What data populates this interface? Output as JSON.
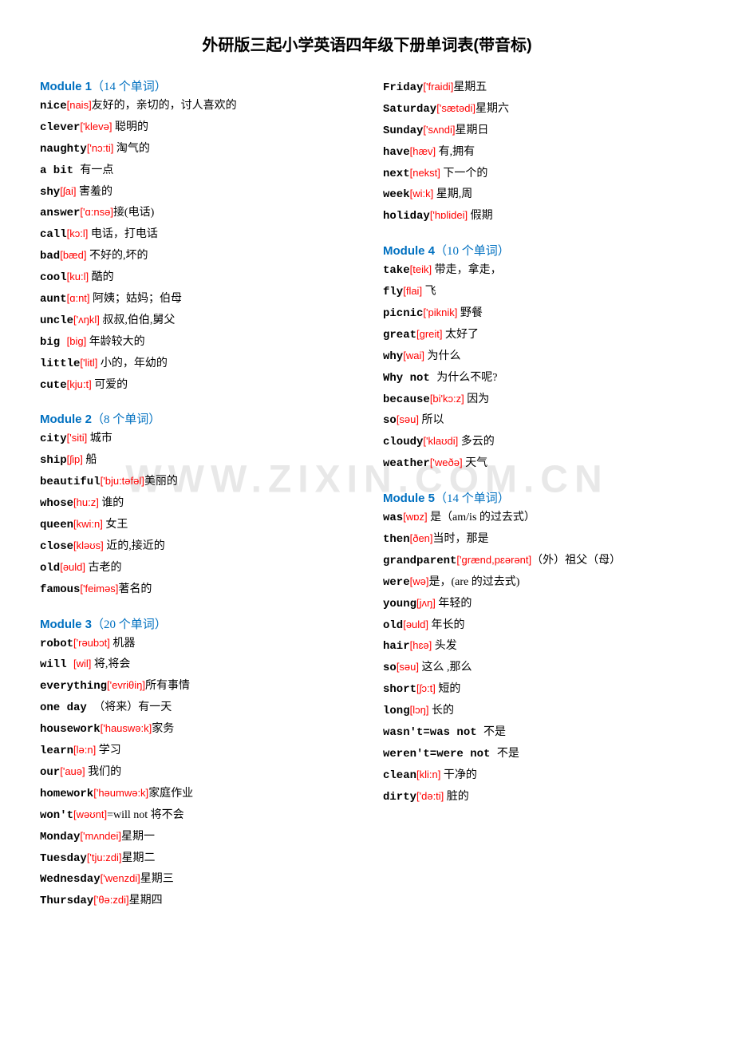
{
  "title": "外研版三起小学英语四年级下册单词表(带音标)",
  "watermark": "WWW.ZIXIN.COM.CN",
  "leftColumn": [
    {
      "header": "Module 1",
      "count": "（14 个单词）",
      "entries": [
        {
          "word": "nice",
          "ipa": "[nais]",
          "def": "友好的，亲切的，讨人喜欢的"
        },
        {
          "word": "clever",
          "ipa": "['klevə]",
          "def": " 聪明的"
        },
        {
          "word": "naughty",
          "ipa": "['nɔ:ti]",
          "def": " 淘气的"
        },
        {
          "word": "a bit ",
          "ipa": "",
          "def": "有一点"
        },
        {
          "word": "shy",
          "ipa": "[ʃai]",
          "def": " 害羞的"
        },
        {
          "word": "answer",
          "ipa": "['ɑ:nsə]",
          "def": "接(电话)"
        },
        {
          "word": "call",
          "ipa": "[kɔ:l]",
          "def": " 电话，打电话"
        },
        {
          "word": "bad",
          "ipa": "[bæd]",
          "def": " 不好的,坏的"
        },
        {
          "word": "cool",
          "ipa": "[ku:l]",
          "def": " 酷的"
        },
        {
          "word": "aunt",
          "ipa": "[ɑ:nt]",
          "def": " 阿姨；姑妈；伯母"
        },
        {
          "word": "uncle",
          "ipa": "['ʌŋkl]",
          "def": " 叔叔,伯伯,舅父"
        },
        {
          "word": "big ",
          "ipa": "[big]",
          "def": " 年龄较大的"
        },
        {
          "word": "little",
          "ipa": "['litl]",
          "def": " 小的，年幼的"
        },
        {
          "word": "cute",
          "ipa": "[kju:t]",
          "def": " 可爱的"
        }
      ]
    },
    {
      "header": "Module 2",
      "count": "（8 个单词）",
      "entries": [
        {
          "word": "city",
          "ipa": "['siti]",
          "def": " 城市"
        },
        {
          "word": "ship",
          "ipa": "[ʃip]",
          "def": " 船"
        },
        {
          "word": "beautiful",
          "ipa": "['bju:təfəl]",
          "def": "美丽的"
        },
        {
          "word": "whose",
          "ipa": "[hu:z]",
          "def": " 谁的"
        },
        {
          "word": "queen",
          "ipa": "[kwi:n]",
          "def": " 女王"
        },
        {
          "word": "close",
          "ipa": "[kləʊs]",
          "def": " 近的,接近的"
        },
        {
          "word": "old",
          "ipa": "[əuld]",
          "def": " 古老的"
        },
        {
          "word": "famous",
          "ipa": "['feiməs]",
          "def": "著名的"
        }
      ]
    },
    {
      "header": "Module 3",
      "count": "（20 个单词）",
      "entries": [
        {
          "word": "robot",
          "ipa": "['rəubɔt]",
          "def": " 机器"
        },
        {
          "word": "will ",
          "ipa": "[wil]",
          "def": " 将,将会"
        },
        {
          "word": "everything",
          "ipa": "['evriθiŋ]",
          "def": "所有事情"
        },
        {
          "word": "one day ",
          "ipa": "",
          "def": "（将来）有一天"
        },
        {
          "word": "housework",
          "ipa": "['hauswə:k]",
          "def": "家务"
        },
        {
          "word": "learn",
          "ipa": "[lə:n]",
          "def": " 学习"
        },
        {
          "word": "our",
          "ipa": "['auə]",
          "def": " 我们的"
        },
        {
          "word": "homework",
          "ipa": "['həumwə:k]",
          "def": "家庭作业"
        },
        {
          "word": "won't",
          "ipa": "[wəʊnt]",
          "def": "=will not 将不会"
        },
        {
          "word": "Monday",
          "ipa": "['mʌndei]",
          "def": "星期一"
        },
        {
          "word": "Tuesday",
          "ipa": "['tju:zdi]",
          "def": "星期二"
        },
        {
          "word": "Wednesday",
          "ipa": "['wenzdi]",
          "def": "星期三"
        },
        {
          "word": "Thursday",
          "ipa": "['θə:zdi]",
          "def": "星期四"
        }
      ]
    }
  ],
  "rightColumn": [
    {
      "header": "",
      "count": "",
      "entries": [
        {
          "word": "Friday",
          "ipa": "['fraidi]",
          "def": "星期五"
        },
        {
          "word": "Saturday",
          "ipa": "['sætədi]",
          "def": "星期六"
        },
        {
          "word": "Sunday",
          "ipa": "['sʌndi]",
          "def": "星期日"
        },
        {
          "word": "have",
          "ipa": "[hæv]",
          "def": " 有,拥有"
        },
        {
          "word": "next",
          "ipa": "[nekst]",
          "def": " 下一个的"
        },
        {
          "word": "week",
          "ipa": "[wi:k]",
          "def": " 星期,周"
        },
        {
          "word": "holiday",
          "ipa": "['hɒlidei]",
          "def": " 假期"
        }
      ]
    },
    {
      "header": "Module 4",
      "count": "（10 个单词）",
      "entries": [
        {
          "word": "take",
          "ipa": "[teik]",
          "def": " 带走，拿走，"
        },
        {
          "word": "fly",
          "ipa": "[flai]",
          "def": " 飞"
        },
        {
          "word": "picnic",
          "ipa": "['piknik]",
          "def": " 野餐"
        },
        {
          "word": "great",
          "ipa": "[greit]",
          "def": " 太好了"
        },
        {
          "word": "why",
          "ipa": "[wai]",
          "def": " 为什么"
        },
        {
          "word": "Why not ",
          "ipa": "",
          "def": "为什么不呢?"
        },
        {
          "word": "because",
          "ipa": "[bi'kɔ:z]",
          "def": " 因为"
        },
        {
          "word": "so",
          "ipa": "[səu]",
          "def": " 所以"
        },
        {
          "word": "cloudy",
          "ipa": "['klaʊdi]",
          "def": " 多云的"
        },
        {
          "word": "weather",
          "ipa": "['weðə]",
          "def": " 天气"
        }
      ]
    },
    {
      "header": "Module 5",
      "count": "（14 个单词）",
      "entries": [
        {
          "word": "was",
          "ipa": "[wɒz]",
          "def": " 是（am/is 的过去式）"
        },
        {
          "word": "then",
          "ipa": "[ðen]",
          "def": "当时，那是"
        },
        {
          "word": "grandparent",
          "ipa": "['grænd,pɛərənt]",
          "def": "（外）祖父（母）"
        },
        {
          "word": "were",
          "ipa": "[wə]",
          "def": "是，(are 的过去式)"
        },
        {
          "word": "young",
          "ipa": "[jʌŋ]",
          "def": " 年轻的"
        },
        {
          "word": "old",
          "ipa": "[əuld]",
          "def": " 年长的"
        },
        {
          "word": "hair",
          "ipa": "[hɛə]",
          "def": " 头发"
        },
        {
          "word": "so",
          "ipa": "[səu]",
          "def": " 这么 ,那么"
        },
        {
          "word": "short",
          "ipa": "[ʃɔ:t]",
          "def": " 短的"
        },
        {
          "word": "long",
          "ipa": "[lɔŋ]",
          "def": " 长的"
        },
        {
          "word": "wasn't=was not ",
          "ipa": "",
          "def": "不是"
        },
        {
          "word": "weren't=were not ",
          "ipa": "",
          "def": "不是"
        },
        {
          "word": "clean",
          "ipa": "[kli:n]",
          "def": " 干净的"
        },
        {
          "word": "dirty",
          "ipa": "['də:ti]",
          "def": " 脏的"
        }
      ]
    }
  ]
}
